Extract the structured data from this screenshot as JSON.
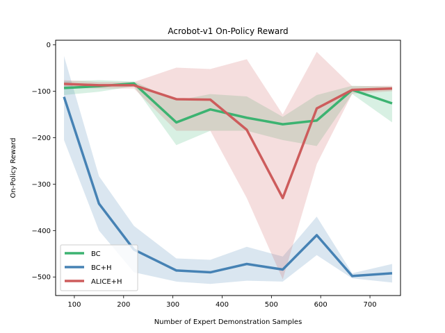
{
  "chart_data": {
    "type": "line",
    "title": "Acrobot-v1 On-Policy Reward",
    "xlabel": "Number of Expert Demonstration Samples",
    "ylabel": "On-Policy Reward",
    "xlim": [
      62,
      762
    ],
    "ylim": [
      -540,
      10
    ],
    "xticks": [
      100,
      200,
      300,
      400,
      500,
      600,
      700
    ],
    "yticks": [
      0,
      -100,
      -200,
      -300,
      -400,
      -500
    ],
    "grid": false,
    "legend_position": "lower-left",
    "x": [
      79,
      150,
      221,
      307,
      376,
      450,
      523,
      592,
      664,
      745
    ],
    "series": [
      {
        "name": "BC",
        "color": "#3cb371",
        "values": [
          -93,
          -89,
          -83,
          -167,
          -139,
          -157,
          -171,
          -163,
          -97,
          -126
        ],
        "band_upper": [
          -78,
          -76,
          -79,
          -120,
          -106,
          -111,
          -155,
          -108,
          -88,
          -90
        ],
        "band_lower": [
          -108,
          -101,
          -89,
          -216,
          -185,
          -185,
          -205,
          -218,
          -106,
          -167
        ]
      },
      {
        "name": "BC+H",
        "color": "#4682b4",
        "values": [
          -112,
          -342,
          -441,
          -486,
          -490,
          -472,
          -484,
          -410,
          -498,
          -492
        ],
        "band_upper": [
          -24,
          -283,
          -390,
          -460,
          -463,
          -435,
          -456,
          -370,
          -492,
          -472
        ],
        "band_lower": [
          -205,
          -400,
          -490,
          -510,
          -515,
          -508,
          -510,
          -453,
          -503,
          -512
        ]
      },
      {
        "name": "ALICE+H",
        "color": "#cd5c5c",
        "values": [
          -84,
          -87,
          -87,
          -117,
          -118,
          -183,
          -330,
          -137,
          -97,
          -94
        ],
        "band_upper": [
          -76,
          -80,
          -80,
          -49,
          -52,
          -31,
          -150,
          -15,
          -89,
          -88
        ],
        "band_lower": [
          -92,
          -94,
          -94,
          -185,
          -185,
          -330,
          -505,
          -257,
          -105,
          -100
        ]
      }
    ]
  }
}
